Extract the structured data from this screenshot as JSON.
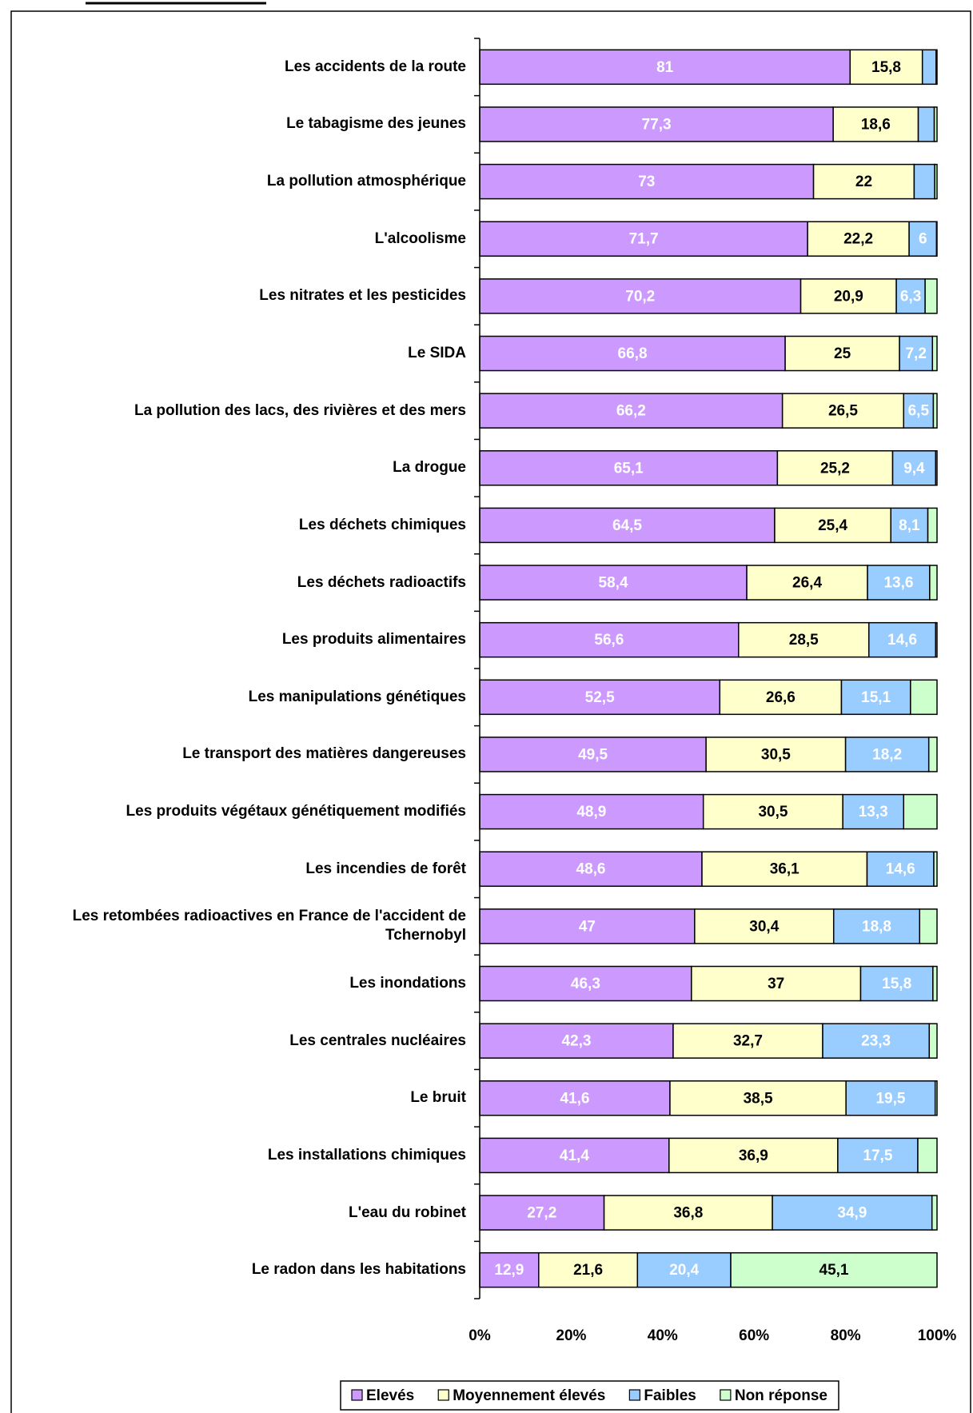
{
  "chart_data": {
    "type": "stacked-bar-horizontal",
    "categories": [
      "Les accidents de la route",
      "Le tabagisme des jeunes",
      "La pollution atmosphérique",
      "L'alcoolisme",
      "Les nitrates et les pesticides",
      "Le SIDA",
      "La pollution des lacs, des rivières et des mers",
      "La drogue",
      "Les déchets chimiques",
      "Les déchets radioactifs",
      "Les produits alimentaires",
      "Les manipulations génétiques",
      "Le transport des matières dangereuses",
      "Les produits végétaux génétiquement modifiés",
      "Les incendies de forêt",
      "Les retombées radioactives en France de l'accident de Tchernobyl",
      "Les inondations",
      "Les centrales nucléaires",
      "Le bruit",
      "Les installations chimiques",
      "L'eau du robinet",
      "Le radon dans les habitations"
    ],
    "series": [
      {
        "name": "Elevés",
        "color": "#cc99ff",
        "label_color": "#ffffff",
        "values": [
          81,
          77.3,
          73,
          71.7,
          70.2,
          66.8,
          66.2,
          65.1,
          64.5,
          58.4,
          56.6,
          52.5,
          49.5,
          48.9,
          48.6,
          47,
          46.3,
          42.3,
          41.6,
          41.4,
          27.2,
          12.9
        ],
        "value_labels": [
          "81",
          "77,3",
          "73",
          "71,7",
          "70,2",
          "66,8",
          "66,2",
          "65,1",
          "64,5",
          "58,4",
          "56,6",
          "52,5",
          "49,5",
          "48,9",
          "48,6",
          "47",
          "46,3",
          "42,3",
          "41,6",
          "41,4",
          "27,2",
          "12,9"
        ]
      },
      {
        "name": "Moyennement élevés",
        "color": "#ffffcc",
        "label_color": "#000000",
        "values": [
          15.8,
          18.6,
          22,
          22.2,
          20.9,
          25,
          26.5,
          25.2,
          25.4,
          26.4,
          28.5,
          26.6,
          30.5,
          30.5,
          36.1,
          30.4,
          37,
          32.7,
          38.5,
          36.9,
          36.8,
          21.6
        ],
        "value_labels": [
          "15,8",
          "18,6",
          "22",
          "22,2",
          "20,9",
          "25",
          "26,5",
          "25,2",
          "25,4",
          "26,4",
          "28,5",
          "26,6",
          "30,5",
          "30,5",
          "36,1",
          "30,4",
          "37",
          "32,7",
          "38,5",
          "36,9",
          "36,8",
          "21,6"
        ]
      },
      {
        "name": "Faibles",
        "color": "#99ccff",
        "label_color": "#ffffff",
        "values": [
          3,
          3.5,
          4.5,
          6,
          6.3,
          7.2,
          6.5,
          9.4,
          8.1,
          13.6,
          14.6,
          15.1,
          18.2,
          13.3,
          14.6,
          18.8,
          15.8,
          23.3,
          19.5,
          17.5,
          34.9,
          20.4
        ],
        "value_labels": [
          null,
          null,
          null,
          "6",
          "6,3",
          "7,2",
          "6,5",
          "9,4",
          "8,1",
          "13,6",
          "14,6",
          "15,1",
          "18,2",
          "13,3",
          "14,6",
          "18,8",
          "15,8",
          "23,3",
          "19,5",
          "17,5",
          "34,9",
          "20,4"
        ]
      },
      {
        "name": "Non réponse",
        "color": "#ccffcc",
        "label_color": "#000000",
        "values": [
          0.2,
          0.6,
          0.5,
          0.1,
          2.6,
          1,
          0.8,
          0.3,
          2,
          1.6,
          0.3,
          5.8,
          1.8,
          7.3,
          0.7,
          3.8,
          0.9,
          1.7,
          0.4,
          4.2,
          1.1,
          45.1
        ],
        "value_labels": [
          null,
          null,
          null,
          null,
          null,
          null,
          null,
          null,
          null,
          null,
          null,
          null,
          null,
          null,
          null,
          null,
          null,
          null,
          null,
          null,
          null,
          "45,1"
        ]
      }
    ],
    "xlim": [
      0,
      100
    ],
    "xticks": [
      {
        "value": 0,
        "label": "0%"
      },
      {
        "value": 20,
        "label": "20%"
      },
      {
        "value": 40,
        "label": "40%"
      },
      {
        "value": 60,
        "label": "60%"
      },
      {
        "value": 80,
        "label": "80%"
      },
      {
        "value": 100,
        "label": "100%"
      }
    ],
    "legend": "bottom"
  }
}
